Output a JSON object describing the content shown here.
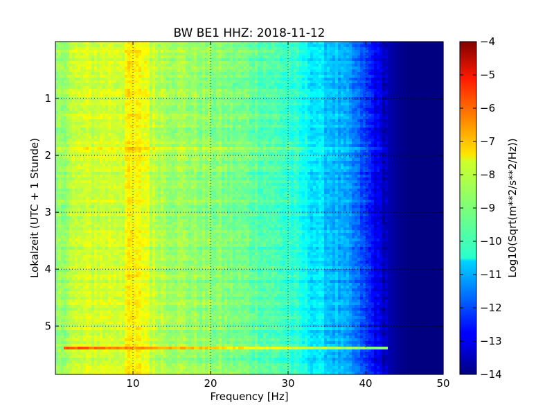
{
  "chart_data": {
    "type": "heatmap",
    "title": "BW BE1 HHZ: 2018-11-12",
    "xlabel": "Frequency [Hz]",
    "ylabel": "Lokalzeit (UTC + 1 Stunde)",
    "xlim": [
      0,
      50
    ],
    "ylim": [
      0,
      5.85
    ],
    "y_inverted": true,
    "x_ticks": [
      10,
      20,
      30,
      40,
      50
    ],
    "x_tick_labels": [
      "10",
      "20",
      "30",
      "40",
      "50"
    ],
    "y_ticks": [
      1,
      2,
      3,
      4,
      5
    ],
    "y_tick_labels": [
      "1",
      "2",
      "3",
      "4",
      "5"
    ],
    "grid": true,
    "colormap": "jet",
    "colorbar": {
      "label": "Log10(Sqrt(m**2/s**2/Hz))",
      "range": [
        -14,
        -4
      ],
      "ticks": [
        -4,
        -5,
        -6,
        -7,
        -8,
        -9,
        -10,
        -11,
        -12,
        -13,
        -14
      ],
      "tick_labels": [
        "−4",
        "−5",
        "−6",
        "−7",
        "−8",
        "−9",
        "−10",
        "−11",
        "−12",
        "−13",
        "−14"
      ]
    },
    "frequency_profile": {
      "frequency_hz": [
        0,
        2,
        5,
        10,
        15,
        20,
        25,
        30,
        33,
        36,
        38,
        40,
        42,
        44,
        46,
        50
      ],
      "log10_amplitude": [
        -9.0,
        -8.4,
        -8.2,
        -8.1,
        -8.6,
        -8.9,
        -9.2,
        -9.7,
        -10.4,
        -10.9,
        -11.4,
        -12.2,
        -13.2,
        -13.8,
        -14.0,
        -14.0
      ]
    },
    "features": [
      {
        "time_h": 5.38,
        "freq_range_hz": [
          1,
          46
        ],
        "log10_amplitude_peak": -6.0,
        "kind": "broadband_event"
      },
      {
        "time_h": 1.9,
        "freq_range_hz": [
          0,
          50
        ],
        "kind": "horizontal_band"
      },
      {
        "freq_hz": 10.5,
        "kind": "vertical_band"
      }
    ]
  }
}
